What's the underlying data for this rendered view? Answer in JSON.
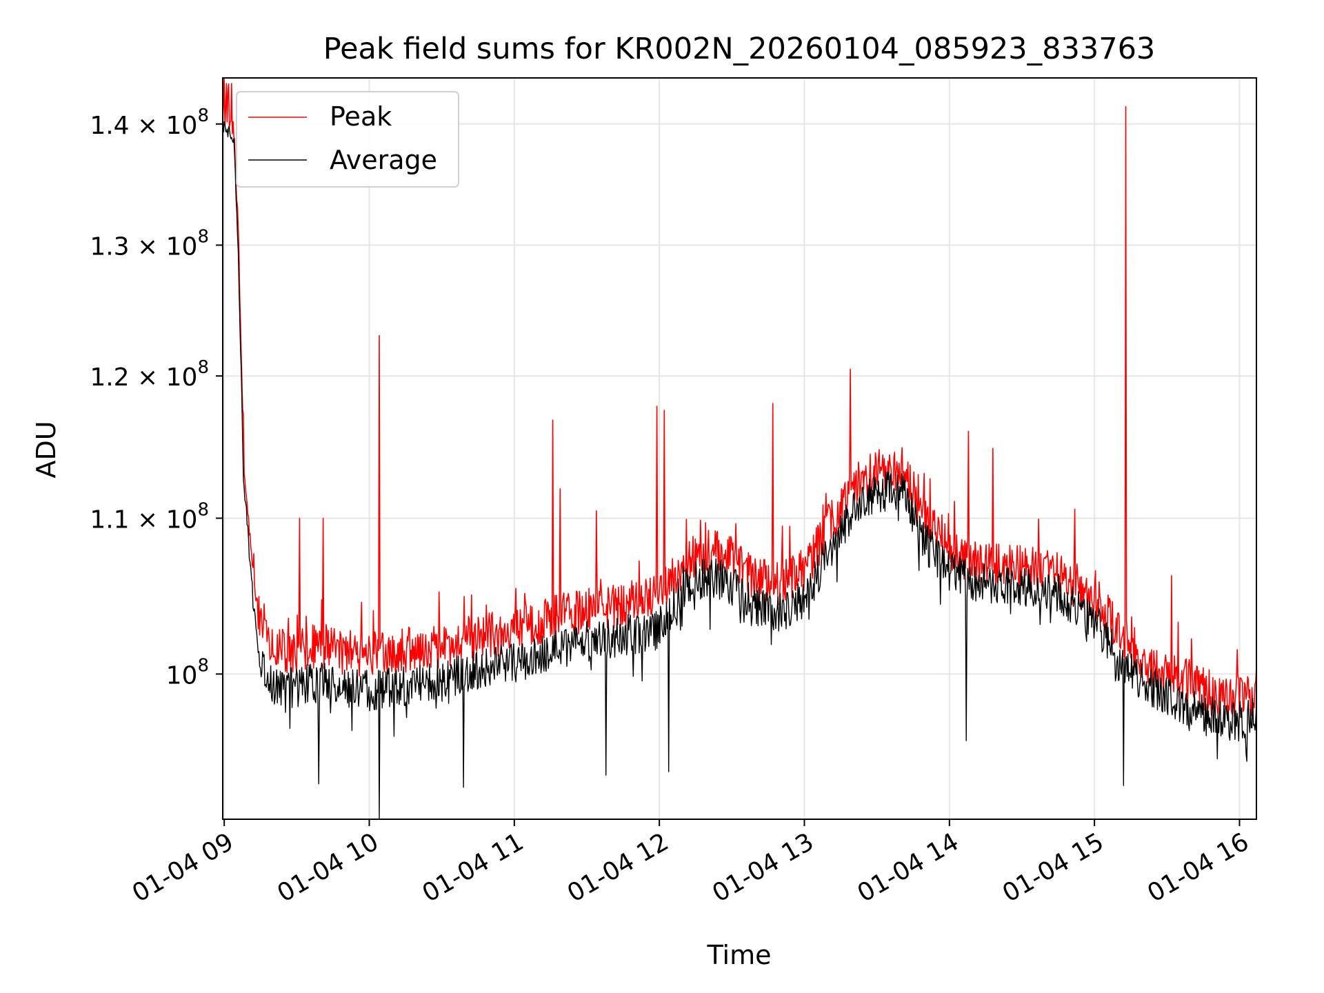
{
  "chart_data": {
    "type": "line",
    "title": "Peak field sums for KR002N_20260104_085923_833763",
    "xlabel": "Time",
    "ylabel": "ADU",
    "x_scale": "time",
    "y_scale": "log",
    "xlim": [
      "2026-01-04 08:59:23",
      "2026-01-04 16:07:00"
    ],
    "ylim": [
      91500000,
      144000000
    ],
    "grid": true,
    "legend_position": "upper-left",
    "x_tick_labels": [
      "01-04 09",
      "01-04 10",
      "01-04 11",
      "01-04 12",
      "01-04 13",
      "01-04 14",
      "01-04 15",
      "01-04 16"
    ],
    "x_ticks": [
      "2026-01-04 09:00",
      "2026-01-04 10:00",
      "2026-01-04 11:00",
      "2026-01-04 12:00",
      "2026-01-04 13:00",
      "2026-01-04 14:00",
      "2026-01-04 15:00",
      "2026-01-04 16:00"
    ],
    "y_ticks": [
      {
        "value": 140000000,
        "mantissa": "1.4",
        "exponent": "8"
      },
      {
        "value": 130000000,
        "mantissa": "1.3",
        "exponent": "8"
      },
      {
        "value": 120000000,
        "mantissa": "1.2",
        "exponent": "8"
      },
      {
        "value": 110000000,
        "mantissa": "1.1",
        "exponent": "8"
      },
      {
        "value": 100000000,
        "mantissa": "",
        "exponent": "8"
      }
    ],
    "y_tick_base": "10",
    "y_tick_times": "×",
    "series": [
      {
        "name": "Peak",
        "color": "#ff0000",
        "x": [
          "2026-01-04 08:59:23",
          "2026-01-04 09:02",
          "2026-01-04 09:04",
          "2026-01-04 09:06",
          "2026-01-04 09:08",
          "2026-01-04 09:10",
          "2026-01-04 09:12",
          "2026-01-04 09:15",
          "2026-01-04 09:20",
          "2026-01-04 09:30",
          "2026-01-04 09:40",
          "2026-01-04 09:50",
          "2026-01-04 10:00",
          "2026-01-04 10:15",
          "2026-01-04 10:30",
          "2026-01-04 10:45",
          "2026-01-04 11:00",
          "2026-01-04 11:15",
          "2026-01-04 11:30",
          "2026-01-04 11:45",
          "2026-01-04 12:00",
          "2026-01-04 12:10",
          "2026-01-04 12:20",
          "2026-01-04 12:30",
          "2026-01-04 12:40",
          "2026-01-04 12:50",
          "2026-01-04 13:00",
          "2026-01-04 13:10",
          "2026-01-04 13:20",
          "2026-01-04 13:30",
          "2026-01-04 13:40",
          "2026-01-04 13:50",
          "2026-01-04 14:00",
          "2026-01-04 14:15",
          "2026-01-04 14:30",
          "2026-01-04 14:45",
          "2026-01-04 15:00",
          "2026-01-04 15:10",
          "2026-01-04 15:20",
          "2026-01-04 15:30",
          "2026-01-04 15:40",
          "2026-01-04 15:50",
          "2026-01-04 16:00",
          "2026-01-04 16:07"
        ],
        "values": [
          141000000,
          140000000,
          139500000,
          130000000,
          114000000,
          110000000,
          106500000,
          102800000,
          101500000,
          101500000,
          101800000,
          101300000,
          101200000,
          101500000,
          101800000,
          102300000,
          102700000,
          103500000,
          104000000,
          104300000,
          104800000,
          107000000,
          107800000,
          107500000,
          106000000,
          105700000,
          106500000,
          109500000,
          112000000,
          113300000,
          113500000,
          110000000,
          107800000,
          106900000,
          106700000,
          106300000,
          104800000,
          102500000,
          101000000,
          100000000,
          99500000,
          98700000,
          98500000,
          98800000
        ],
        "spikes": [
          {
            "x": "2026-01-04 09:01",
            "value": 143500000
          },
          {
            "x": "2026-01-04 09:03",
            "value": 143500000
          },
          {
            "x": "2026-01-04 09:31",
            "value": 110000000
          },
          {
            "x": "2026-01-04 09:41",
            "value": 110000000
          },
          {
            "x": "2026-01-04 10:04",
            "value": 123000000
          },
          {
            "x": "2026-01-04 11:16",
            "value": 116800000
          },
          {
            "x": "2026-01-04 11:19",
            "value": 112000000
          },
          {
            "x": "2026-01-04 11:34",
            "value": 110500000
          },
          {
            "x": "2026-01-04 11:59",
            "value": 117800000
          },
          {
            "x": "2026-01-04 12:02",
            "value": 117500000
          },
          {
            "x": "2026-01-04 12:47",
            "value": 118000000
          },
          {
            "x": "2026-01-04 13:19",
            "value": 120500000
          },
          {
            "x": "2026-01-04 14:08",
            "value": 116000000
          },
          {
            "x": "2026-01-04 14:18",
            "value": 114800000
          },
          {
            "x": "2026-01-04 14:52",
            "value": 110600000
          },
          {
            "x": "2026-01-04 15:13",
            "value": 141500000
          },
          {
            "x": "2026-01-04 15:32",
            "value": 106200000
          },
          {
            "x": "2026-01-04 15:59",
            "value": 101500000
          }
        ]
      },
      {
        "name": "Average",
        "color": "#000000",
        "x": [
          "2026-01-04 08:59:23",
          "2026-01-04 09:02",
          "2026-01-04 09:04",
          "2026-01-04 09:06",
          "2026-01-04 09:08",
          "2026-01-04 09:10",
          "2026-01-04 09:12",
          "2026-01-04 09:15",
          "2026-01-04 09:20",
          "2026-01-04 09:30",
          "2026-01-04 09:40",
          "2026-01-04 09:50",
          "2026-01-04 10:00",
          "2026-01-04 10:15",
          "2026-01-04 10:30",
          "2026-01-04 10:45",
          "2026-01-04 11:00",
          "2026-01-04 11:15",
          "2026-01-04 11:30",
          "2026-01-04 11:45",
          "2026-01-04 12:00",
          "2026-01-04 12:10",
          "2026-01-04 12:20",
          "2026-01-04 12:30",
          "2026-01-04 12:40",
          "2026-01-04 12:50",
          "2026-01-04 13:00",
          "2026-01-04 13:10",
          "2026-01-04 13:20",
          "2026-01-04 13:30",
          "2026-01-04 13:40",
          "2026-01-04 13:50",
          "2026-01-04 14:00",
          "2026-01-04 14:15",
          "2026-01-04 14:30",
          "2026-01-04 14:45",
          "2026-01-04 15:00",
          "2026-01-04 15:10",
          "2026-01-04 15:20",
          "2026-01-04 15:30",
          "2026-01-04 15:40",
          "2026-01-04 15:50",
          "2026-01-04 16:00",
          "2026-01-04 16:07"
        ],
        "values": [
          140000000,
          139000000,
          138500000,
          128000000,
          112500000,
          108500000,
          104500000,
          100800000,
          99300000,
          99200000,
          99500000,
          99100000,
          99000000,
          99300000,
          99700000,
          100200000,
          100700000,
          101500000,
          102000000,
          102400000,
          102800000,
          105500000,
          106200000,
          105800000,
          104200000,
          103800000,
          104600000,
          107800000,
          110500000,
          111800000,
          112000000,
          108400000,
          106400000,
          105600000,
          105400000,
          105000000,
          103300000,
          100800000,
          99500000,
          98700000,
          98000000,
          97400000,
          97100000,
          97500000
        ],
        "dips": [
          {
            "x": "2026-01-04 09:39",
            "value": 93500000
          },
          {
            "x": "2026-01-04 10:04",
            "value": 91500000
          },
          {
            "x": "2026-01-04 10:39",
            "value": 93300000
          },
          {
            "x": "2026-01-04 11:38",
            "value": 94000000
          },
          {
            "x": "2026-01-04 12:04",
            "value": 94200000
          },
          {
            "x": "2026-01-04 14:07",
            "value": 96000000
          },
          {
            "x": "2026-01-04 15:12",
            "value": 93400000
          },
          {
            "x": "2026-01-04 16:03",
            "value": 94800000
          }
        ]
      }
    ]
  }
}
